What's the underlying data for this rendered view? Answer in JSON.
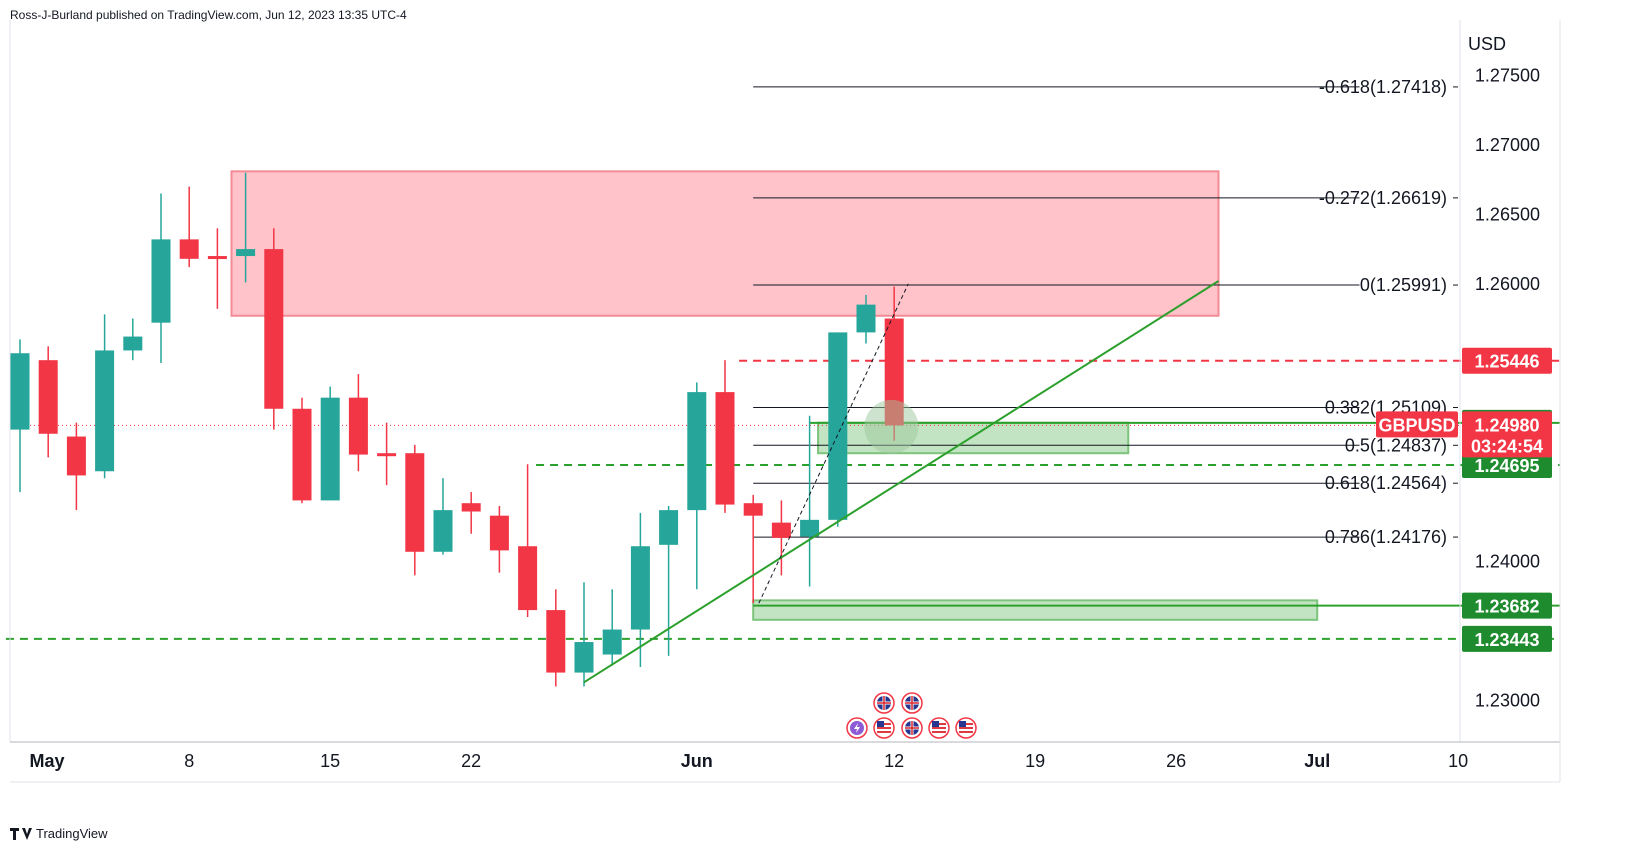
{
  "header": {
    "publisher_line": "Ross-J-Burland published on TradingView.com, Jun 12, 2023 13:35 UTC-4"
  },
  "footer": {
    "brand": "TradingView"
  },
  "colors": {
    "up": "#26a69a",
    "down": "#f23645",
    "zone_red": "#ffc0c6",
    "zone_green": "#b7dfb7",
    "trend": "#2ca02c",
    "axis_bg": "#ffffff"
  },
  "chart_data": {
    "type": "candlestick",
    "symbol": "GBPUSD",
    "currency_label": "USD",
    "ylim": [
      1.227,
      1.279
    ],
    "y_ticks": [
      {
        "value": 1.275,
        "label": "1.27500"
      },
      {
        "value": 1.27,
        "label": "1.27000"
      },
      {
        "value": 1.265,
        "label": "1.26500"
      },
      {
        "value": 1.26,
        "label": "1.26000"
      },
      {
        "value": 1.24,
        "label": "1.24000"
      },
      {
        "value": 1.23,
        "label": "1.23000"
      }
    ],
    "x_ticks": [
      {
        "index": 0,
        "label": "May",
        "bold": true
      },
      {
        "index": 6,
        "label": "8"
      },
      {
        "index": 11,
        "label": "15"
      },
      {
        "index": 16,
        "label": "22"
      },
      {
        "index": 24,
        "label": "Jun",
        "bold": true
      },
      {
        "index": 31,
        "label": "12"
      },
      {
        "index": 36,
        "label": "19"
      },
      {
        "index": 41,
        "label": "26"
      },
      {
        "index": 46,
        "label": "Jul",
        "bold": true
      },
      {
        "index": 51,
        "label": "10"
      }
    ],
    "candles": [
      {
        "o": 1.2495,
        "h": 1.256,
        "l": 1.245,
        "c": 1.255
      },
      {
        "o": 1.2545,
        "h": 1.2555,
        "l": 1.2475,
        "c": 1.2492
      },
      {
        "o": 1.249,
        "h": 1.25,
        "l": 1.2437,
        "c": 1.2462
      },
      {
        "o": 1.2465,
        "h": 1.2578,
        "l": 1.246,
        "c": 1.2552
      },
      {
        "o": 1.2552,
        "h": 1.2575,
        "l": 1.2545,
        "c": 1.2562
      },
      {
        "o": 1.2572,
        "h": 1.2665,
        "l": 1.2543,
        "c": 1.2632
      },
      {
        "o": 1.2632,
        "h": 1.267,
        "l": 1.2612,
        "c": 1.2618
      },
      {
        "o": 1.262,
        "h": 1.264,
        "l": 1.2582,
        "c": 1.2618
      },
      {
        "o": 1.262,
        "h": 1.268,
        "l": 1.2601,
        "c": 1.2625
      },
      {
        "o": 1.2625,
        "h": 1.264,
        "l": 1.2495,
        "c": 1.251
      },
      {
        "o": 1.251,
        "h": 1.2518,
        "l": 1.2442,
        "c": 1.2444
      },
      {
        "o": 1.2444,
        "h": 1.2526,
        "l": 1.2444,
        "c": 1.2518
      },
      {
        "o": 1.2518,
        "h": 1.2535,
        "l": 1.2465,
        "c": 1.2477
      },
      {
        "o": 1.2478,
        "h": 1.25,
        "l": 1.2455,
        "c": 1.2476
      },
      {
        "o": 1.2478,
        "h": 1.2484,
        "l": 1.239,
        "c": 1.2407
      },
      {
        "o": 1.2407,
        "h": 1.246,
        "l": 1.2405,
        "c": 1.2437
      },
      {
        "o": 1.2442,
        "h": 1.245,
        "l": 1.242,
        "c": 1.2436
      },
      {
        "o": 1.2433,
        "h": 1.244,
        "l": 1.2392,
        "c": 1.2408
      },
      {
        "o": 1.2411,
        "h": 1.247,
        "l": 1.236,
        "c": 1.2365
      },
      {
        "o": 1.2365,
        "h": 1.238,
        "l": 1.231,
        "c": 1.232
      },
      {
        "o": 1.232,
        "h": 1.2385,
        "l": 1.231,
        "c": 1.2342
      },
      {
        "o": 1.2333,
        "h": 1.238,
        "l": 1.2325,
        "c": 1.2351
      },
      {
        "o": 1.2351,
        "h": 1.2435,
        "l": 1.2324,
        "c": 1.2411
      },
      {
        "o": 1.2412,
        "h": 1.244,
        "l": 1.2332,
        "c": 1.2437
      },
      {
        "o": 1.2437,
        "h": 1.2529,
        "l": 1.238,
        "c": 1.2522
      },
      {
        "o": 1.2522,
        "h": 1.2545,
        "l": 1.2435,
        "c": 1.2441
      },
      {
        "o": 1.2442,
        "h": 1.2448,
        "l": 1.237,
        "c": 1.2433
      },
      {
        "o": 1.2428,
        "h": 1.2444,
        "l": 1.239,
        "c": 1.2417
      },
      {
        "o": 1.2418,
        "h": 1.2505,
        "l": 1.2382,
        "c": 1.243
      },
      {
        "o": 1.243,
        "h": 1.2565,
        "l": 1.2425,
        "c": 1.2565
      },
      {
        "o": 1.2565,
        "h": 1.2592,
        "l": 1.2557,
        "c": 1.2585
      },
      {
        "o": 1.2575,
        "h": 1.2598,
        "l": 1.2487,
        "c": 1.2498
      }
    ],
    "price_lines": [
      {
        "value": 1.25446,
        "label": "1.25446",
        "color": "#f23645",
        "style": "dashed",
        "from_index": 25.5,
        "badge": true
      },
      {
        "value": 1.24695,
        "label": "1.24695",
        "color": "#2ca02c",
        "style": "dashed",
        "from_index": 18.3,
        "badge": true
      },
      {
        "value": 1.23443,
        "label": "1.23443",
        "color": "#2ca02c",
        "style": "dashed",
        "from_index": -0.5,
        "badge": true
      },
      {
        "value": 1.24998,
        "label": "1.24998",
        "color": "#2ca02c",
        "style": "solid",
        "from_index": 28,
        "badge": true
      },
      {
        "value": 1.23682,
        "label": "1.23682",
        "color": "#2ca02c",
        "style": "solid",
        "from_index": 26,
        "badge": true
      }
    ],
    "current_price": {
      "symbol": "GBPUSD",
      "value": 1.2498,
      "label": "1.24980",
      "countdown": "03:24:54"
    },
    "fib_levels": [
      {
        "ratio": "-0.618",
        "value": 1.27418,
        "label": "-0.618(1.27418)"
      },
      {
        "ratio": "-0.272",
        "value": 1.26619,
        "label": "-0.272(1.26619)"
      },
      {
        "ratio": "0",
        "value": 1.25991,
        "label": "0(1.25991)"
      },
      {
        "ratio": "0.382",
        "value": 1.25109,
        "label": "0.382(1.25109)"
      },
      {
        "ratio": "0.5",
        "value": 1.24837,
        "label": "0.5(1.24837)"
      },
      {
        "ratio": "0.618",
        "value": 1.24564,
        "label": "0.618(1.24564)"
      },
      {
        "ratio": "0.786",
        "value": 1.24176,
        "label": "0.786(1.24176)"
      }
    ],
    "fib_range_index": [
      26,
      47.5
    ],
    "zones": [
      {
        "type": "supply",
        "x0": 7.5,
        "x1": 42.5,
        "y0": 1.2681,
        "y1": 1.2577
      },
      {
        "type": "demand",
        "x0": 28.3,
        "x1": 39.3,
        "y0": 1.25,
        "y1": 1.2478
      },
      {
        "type": "demand",
        "x0": 26,
        "x1": 46,
        "y0": 1.2372,
        "y1": 1.2358
      }
    ],
    "trendline": {
      "x0": 20,
      "y0": 1.2313,
      "x1": 42.5,
      "y1": 1.2602
    },
    "fib_swing": {
      "x0": 26.2,
      "y0": 1.237,
      "x1": 31.5,
      "y1": 1.26
    }
  }
}
